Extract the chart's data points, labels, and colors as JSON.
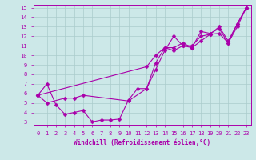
{
  "xlabel": "Windchill (Refroidissement éolien,°C)",
  "background_color": "#cce8e8",
  "grid_color": "#aacccc",
  "line_color": "#aa00aa",
  "xlim": [
    -0.5,
    23.5
  ],
  "ylim": [
    2.7,
    15.3
  ],
  "xticks": [
    0,
    1,
    2,
    3,
    4,
    5,
    6,
    7,
    8,
    9,
    10,
    11,
    12,
    13,
    14,
    15,
    16,
    17,
    18,
    19,
    20,
    21,
    22,
    23
  ],
  "yticks": [
    3,
    4,
    5,
    6,
    7,
    8,
    9,
    10,
    11,
    12,
    13,
    14,
    15
  ],
  "series1_x": [
    0,
    1,
    2,
    3,
    4,
    5,
    6,
    7,
    8,
    9,
    10,
    11,
    12,
    13,
    14,
    15,
    16,
    17,
    18,
    19,
    20,
    21,
    22,
    23
  ],
  "series1_y": [
    5.8,
    7.0,
    4.8,
    3.8,
    4.0,
    4.2,
    3.0,
    3.2,
    3.2,
    3.3,
    5.3,
    6.5,
    6.5,
    8.5,
    10.5,
    12.0,
    11.0,
    10.8,
    11.5,
    12.2,
    13.0,
    11.5,
    13.3,
    15.0
  ],
  "series2_x": [
    0,
    1,
    3,
    4,
    5,
    10,
    12,
    13,
    14,
    15,
    16,
    17,
    18,
    19,
    20,
    21,
    22,
    23
  ],
  "series2_y": [
    5.8,
    5.0,
    5.5,
    5.5,
    5.8,
    5.2,
    6.5,
    9.2,
    10.8,
    10.5,
    11.0,
    11.0,
    12.0,
    12.2,
    12.3,
    11.3,
    13.0,
    15.0
  ],
  "series3_x": [
    0,
    12,
    13,
    14,
    15,
    16,
    17,
    18,
    19,
    20,
    21,
    22,
    23
  ],
  "series3_y": [
    5.8,
    8.8,
    10.0,
    10.8,
    10.8,
    11.3,
    10.8,
    12.5,
    12.3,
    12.8,
    11.3,
    13.3,
    15.0
  ],
  "marker_size": 2.5,
  "line_width": 0.8,
  "tick_fontsize": 5.0,
  "xlabel_fontsize": 5.5
}
